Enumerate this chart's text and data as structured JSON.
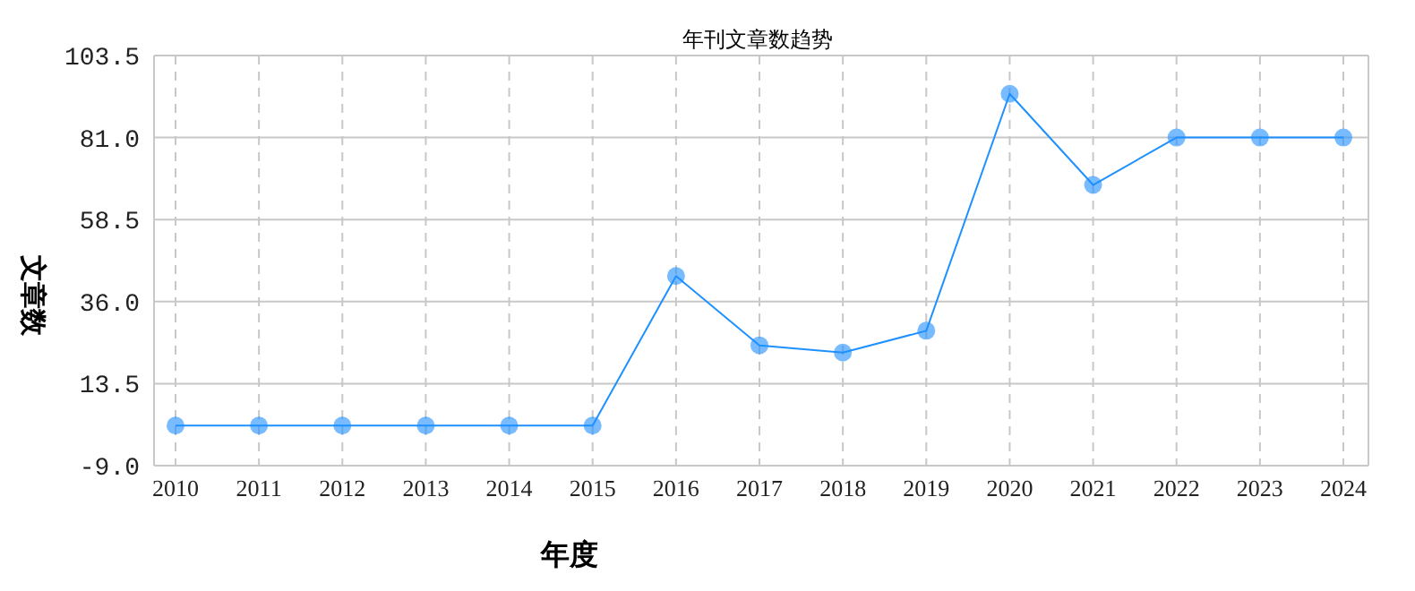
{
  "chart_data": {
    "type": "line",
    "title": "年刊文章数趋势",
    "xlabel": "年度",
    "ylabel": "文章数",
    "categories": [
      "2010",
      "2011",
      "2012",
      "2013",
      "2014",
      "2015",
      "2016",
      "2017",
      "2018",
      "2019",
      "2020",
      "2021",
      "2022",
      "2023",
      "2024"
    ],
    "series": [
      {
        "color": "#1e90ff",
        "values": [
          2,
          2,
          2,
          2,
          2,
          2,
          43,
          24,
          22,
          28,
          93,
          68,
          81,
          81,
          81
        ]
      }
    ],
    "ylim": [
      -9,
      103.5
    ],
    "yticks": [
      {
        "value": -9,
        "label": "-9.0"
      },
      {
        "value": 13.5,
        "label": "13.5"
      },
      {
        "value": 36,
        "label": "36.0"
      },
      {
        "value": 58.5,
        "label": "58.5"
      },
      {
        "value": 81,
        "label": "81.0"
      },
      {
        "value": 103.5,
        "label": "103.5"
      }
    ],
    "grid": true,
    "marker": "circle",
    "line_style": "solid",
    "legend": false
  }
}
